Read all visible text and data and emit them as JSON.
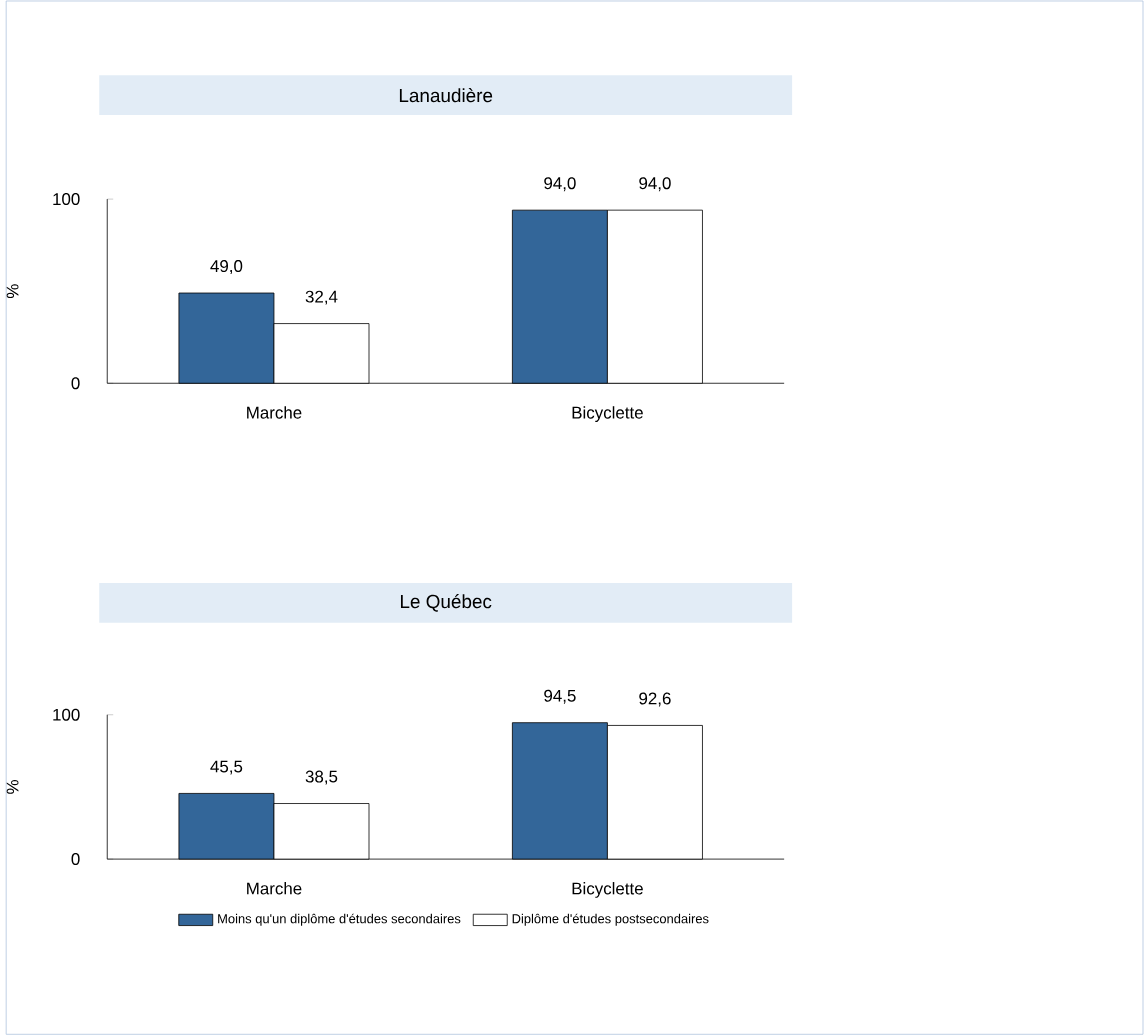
{
  "chart_data": [
    {
      "type": "bar",
      "title": "Lanaudière",
      "ylabel": "%",
      "categories": [
        "Marche",
        "Bicyclette"
      ],
      "ylim": [
        0,
        100
      ],
      "yticks": [
        0,
        100
      ],
      "series": [
        {
          "color": "#336699",
          "values": [
            49.0,
            94.0
          ],
          "value_labels": [
            "49,0",
            "94,0"
          ]
        },
        {
          "color": "#ffffff",
          "values": [
            32.4,
            94.0
          ],
          "value_labels": [
            "32,4",
            "94,0"
          ]
        }
      ]
    },
    {
      "type": "bar",
      "title": "Le Québec",
      "ylabel": "%",
      "categories": [
        "Marche",
        "Bicyclette"
      ],
      "ylim": [
        0,
        100
      ],
      "yticks": [
        0,
        100
      ],
      "legend": "bottom",
      "series": [
        {
          "name": "Moins qu'un diplôme d'études secondaires",
          "color": "#336699",
          "values": [
            45.5,
            94.5
          ],
          "value_labels": [
            "45,5",
            "94,5"
          ]
        },
        {
          "name": "Diplôme d'études postsecondaires",
          "color": "#ffffff",
          "values": [
            38.5,
            92.6
          ],
          "value_labels": [
            "38,5",
            "92,6"
          ]
        }
      ]
    }
  ]
}
